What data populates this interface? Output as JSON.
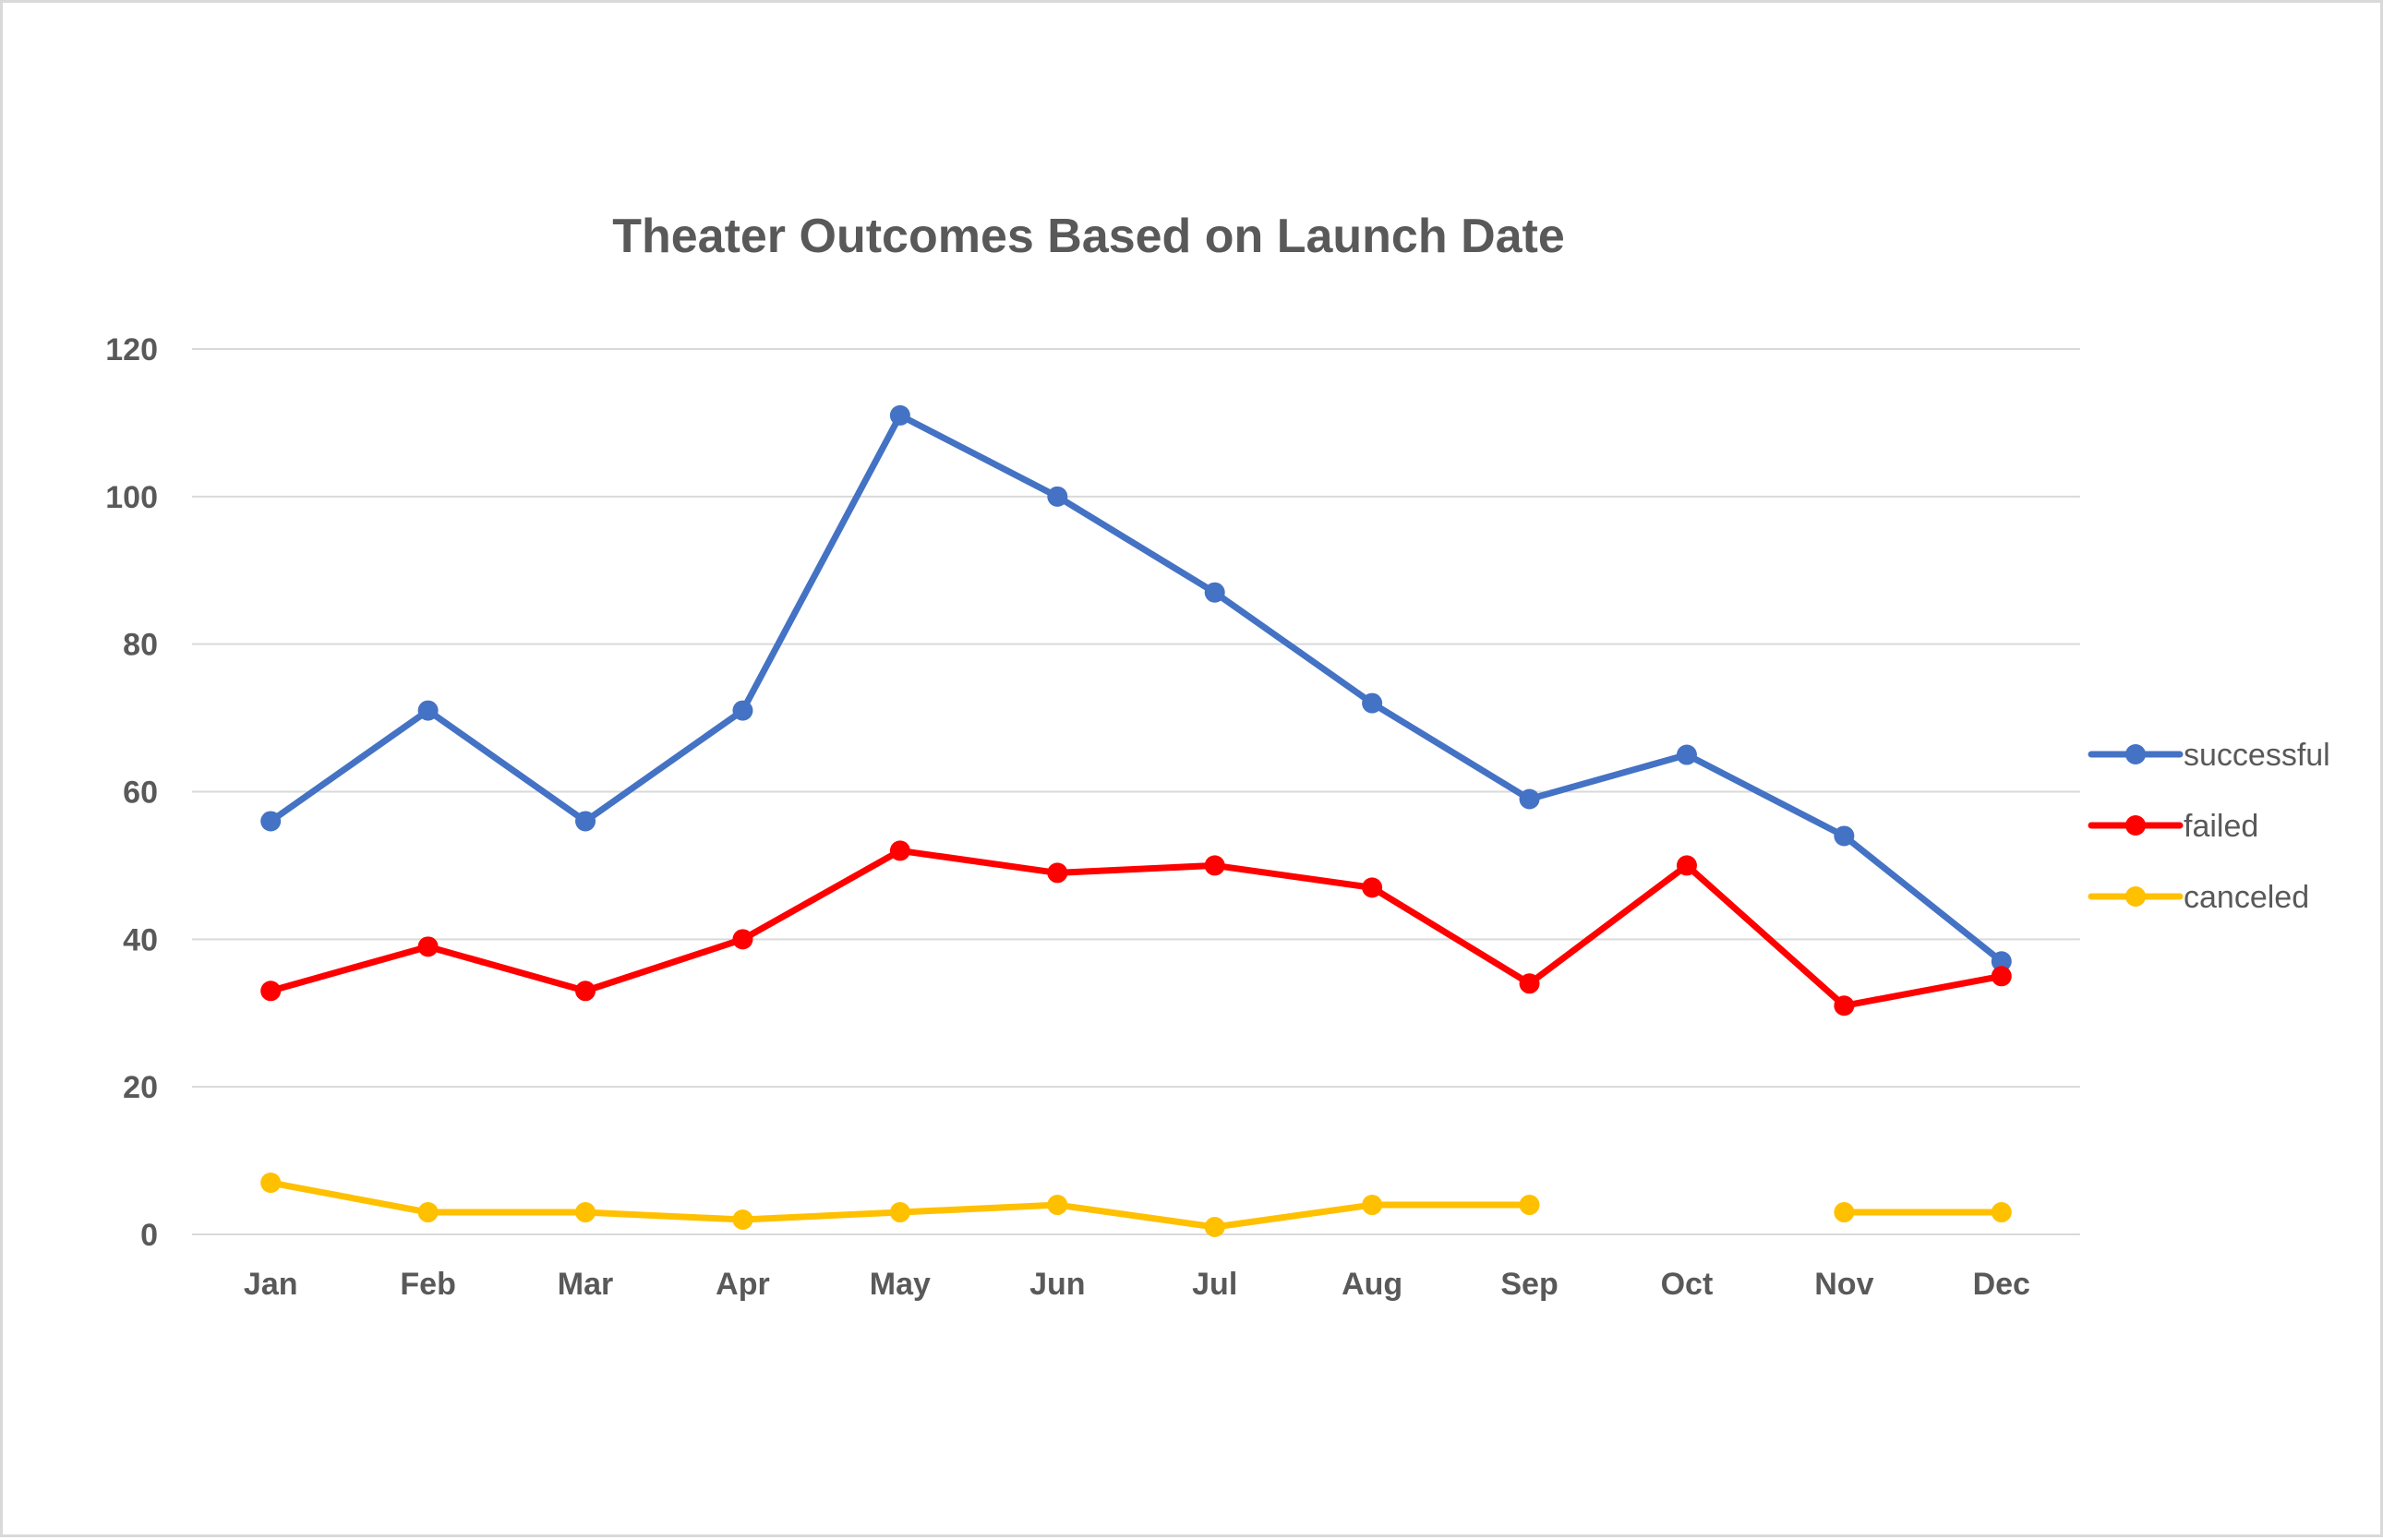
{
  "chart_data": {
    "type": "line",
    "title": "Theater Outcomes Based on Launch Date",
    "xlabel": "",
    "ylabel": "",
    "categories": [
      "Jan",
      "Feb",
      "Mar",
      "Apr",
      "May",
      "Jun",
      "Jul",
      "Aug",
      "Sep",
      "Oct",
      "Nov",
      "Dec"
    ],
    "ylim": [
      0,
      120
    ],
    "yticks": [
      "0",
      "20",
      "40",
      "60",
      "80",
      "100",
      "120"
    ],
    "grid": true,
    "legend_position": "right",
    "series": [
      {
        "name": "successful",
        "color": "#4472c4",
        "values": [
          56,
          71,
          56,
          71,
          111,
          100,
          87,
          72,
          59,
          65,
          54,
          37
        ]
      },
      {
        "name": "failed",
        "color": "#ff0000",
        "values": [
          33,
          39,
          33,
          40,
          52,
          49,
          50,
          47,
          34,
          50,
          31,
          35
        ]
      },
      {
        "name": "canceled",
        "color": "#ffc000",
        "values": [
          7,
          3,
          3,
          2,
          3,
          4,
          1,
          4,
          4,
          null,
          3,
          3
        ]
      }
    ]
  }
}
